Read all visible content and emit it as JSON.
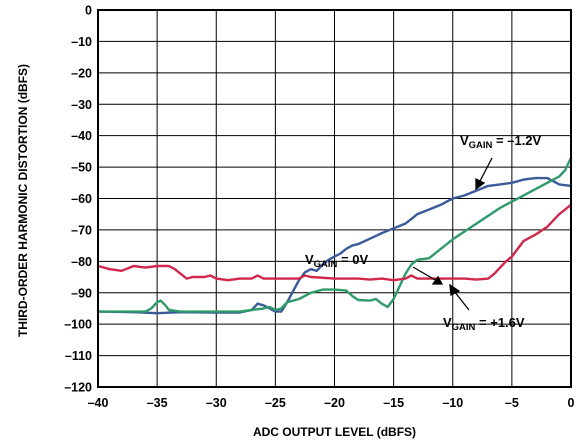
{
  "chart_data": {
    "type": "line",
    "xlabel": "ADC OUTPUT LEVEL (dBFS)",
    "ylabel": "THIRD-ORDER HARMONIC DISTORTION (dBFS)",
    "xlim": [
      -40,
      0
    ],
    "ylim": [
      -120,
      0
    ],
    "xticks": [
      -40,
      -35,
      -30,
      -25,
      -20,
      -15,
      -10,
      -5,
      0
    ],
    "yticks": [
      0,
      -10,
      -20,
      -30,
      -40,
      -50,
      -60,
      -70,
      -80,
      -90,
      -100,
      -110,
      -120
    ],
    "xtick_labels": [
      "–40",
      "–35",
      "–30",
      "–25",
      "–20",
      "–15",
      "–10",
      "–5",
      "0"
    ],
    "ytick_labels": [
      "0",
      "–10",
      "–20",
      "–30",
      "–40",
      "–50",
      "–60",
      "–70",
      "–80",
      "–90",
      "–100",
      "–110",
      "–120"
    ],
    "grid": true,
    "series": [
      {
        "name": "V_GAIN = –1.2V",
        "color": "#3a5a9a",
        "points": [
          [
            -40,
            -96
          ],
          [
            -37,
            -96.2
          ],
          [
            -35,
            -96.5
          ],
          [
            -33,
            -96.2
          ],
          [
            -30,
            -96.3
          ],
          [
            -28,
            -96.3
          ],
          [
            -27,
            -95.5
          ],
          [
            -26.5,
            -93.5
          ],
          [
            -26,
            -94
          ],
          [
            -25.5,
            -95
          ],
          [
            -25,
            -96
          ],
          [
            -24.5,
            -96
          ],
          [
            -24,
            -93
          ],
          [
            -23.5,
            -89.5
          ],
          [
            -23,
            -86
          ],
          [
            -22.5,
            -83.5
          ],
          [
            -22,
            -82.5
          ],
          [
            -21.5,
            -83
          ],
          [
            -21,
            -81
          ],
          [
            -20.5,
            -79.5
          ],
          [
            -20,
            -78.5
          ],
          [
            -19.5,
            -77.5
          ],
          [
            -19,
            -76
          ],
          [
            -18.5,
            -75
          ],
          [
            -18,
            -74.5
          ],
          [
            -17,
            -72.8
          ],
          [
            -16,
            -71
          ],
          [
            -15,
            -69.5
          ],
          [
            -14,
            -68
          ],
          [
            -13.5,
            -66.5
          ],
          [
            -13,
            -65
          ],
          [
            -12,
            -63.5
          ],
          [
            -11,
            -62
          ],
          [
            -10.5,
            -61
          ],
          [
            -10,
            -60
          ],
          [
            -9,
            -59
          ],
          [
            -8,
            -57.5
          ],
          [
            -7,
            -56
          ],
          [
            -6,
            -55.5
          ],
          [
            -5,
            -55
          ],
          [
            -4,
            -54
          ],
          [
            -3,
            -53.5
          ],
          [
            -2,
            -53.5
          ],
          [
            -1.5,
            -54.5
          ],
          [
            -1,
            -55.5
          ],
          [
            0,
            -56
          ]
        ]
      },
      {
        "name": "V_GAIN = 0V",
        "color": "#2f9a6a",
        "points": [
          [
            -40,
            -96
          ],
          [
            -37,
            -96
          ],
          [
            -36,
            -96
          ],
          [
            -35.5,
            -95
          ],
          [
            -35,
            -93
          ],
          [
            -34.7,
            -92.5
          ],
          [
            -34.3,
            -94
          ],
          [
            -34,
            -95.5
          ],
          [
            -33,
            -96
          ],
          [
            -30,
            -96
          ],
          [
            -28,
            -96
          ],
          [
            -27,
            -95.5
          ],
          [
            -26,
            -95
          ],
          [
            -25.5,
            -94.5
          ],
          [
            -25,
            -95.5
          ],
          [
            -24.5,
            -95
          ],
          [
            -24,
            -93
          ],
          [
            -23,
            -92
          ],
          [
            -22,
            -90
          ],
          [
            -21,
            -89
          ],
          [
            -20,
            -89
          ],
          [
            -19,
            -89.3
          ],
          [
            -18.5,
            -91
          ],
          [
            -18,
            -92.3
          ],
          [
            -17,
            -92.5
          ],
          [
            -16.5,
            -92
          ],
          [
            -16,
            -93.5
          ],
          [
            -15.5,
            -94.5
          ],
          [
            -15,
            -92
          ],
          [
            -14.5,
            -88
          ],
          [
            -14,
            -84
          ],
          [
            -13.5,
            -81
          ],
          [
            -13,
            -79.5
          ],
          [
            -12,
            -79
          ],
          [
            -11,
            -76
          ],
          [
            -10,
            -73
          ],
          [
            -8,
            -68
          ],
          [
            -6,
            -63
          ],
          [
            -5,
            -61
          ],
          [
            -4,
            -59
          ],
          [
            -3,
            -57
          ],
          [
            -2,
            -55
          ],
          [
            -1,
            -53
          ],
          [
            -0.5,
            -51
          ],
          [
            0,
            -47
          ]
        ]
      },
      {
        "name": "V_GAIN = +1.6V",
        "color": "#d0274a",
        "points": [
          [
            -40,
            -81.5
          ],
          [
            -39,
            -82.5
          ],
          [
            -38,
            -83
          ],
          [
            -37,
            -81.5
          ],
          [
            -36,
            -82
          ],
          [
            -35,
            -81.5
          ],
          [
            -34,
            -81.5
          ],
          [
            -33.5,
            -82.5
          ],
          [
            -33,
            -84
          ],
          [
            -32.5,
            -85.5
          ],
          [
            -32,
            -85
          ],
          [
            -31,
            -85
          ],
          [
            -30.5,
            -84.5
          ],
          [
            -30,
            -85.5
          ],
          [
            -29,
            -86
          ],
          [
            -28,
            -85.5
          ],
          [
            -27,
            -85.5
          ],
          [
            -26.5,
            -84.5
          ],
          [
            -26,
            -85.5
          ],
          [
            -24,
            -85.5
          ],
          [
            -23,
            -85.5
          ],
          [
            -22.5,
            -84.5
          ],
          [
            -22,
            -85
          ],
          [
            -20,
            -85.5
          ],
          [
            -18,
            -85.5
          ],
          [
            -17,
            -85.8
          ],
          [
            -16,
            -85.5
          ],
          [
            -15,
            -86
          ],
          [
            -14,
            -85.5
          ],
          [
            -13.5,
            -84.5
          ],
          [
            -13,
            -85.5
          ],
          [
            -12,
            -85.5
          ],
          [
            -10,
            -85.5
          ],
          [
            -9,
            -85.5
          ],
          [
            -8,
            -85.8
          ],
          [
            -7,
            -85.5
          ],
          [
            -6.5,
            -84
          ],
          [
            -6,
            -82
          ],
          [
            -5.5,
            -80
          ],
          [
            -5,
            -78.5
          ],
          [
            -4,
            -73.5
          ],
          [
            -3,
            -71.5
          ],
          [
            -2,
            -69
          ],
          [
            -1,
            -65
          ],
          [
            0,
            -62
          ]
        ]
      }
    ]
  },
  "annotations": {
    "minus12": {
      "v": "V",
      "sub": "GAIN",
      "rest": " = –1.2V"
    },
    "zero": {
      "v": "V",
      "sub": "GAIN",
      "rest": " = 0V"
    },
    "plus16": {
      "v": "V",
      "sub": "GAIN",
      "rest": " = +1.6V"
    }
  }
}
